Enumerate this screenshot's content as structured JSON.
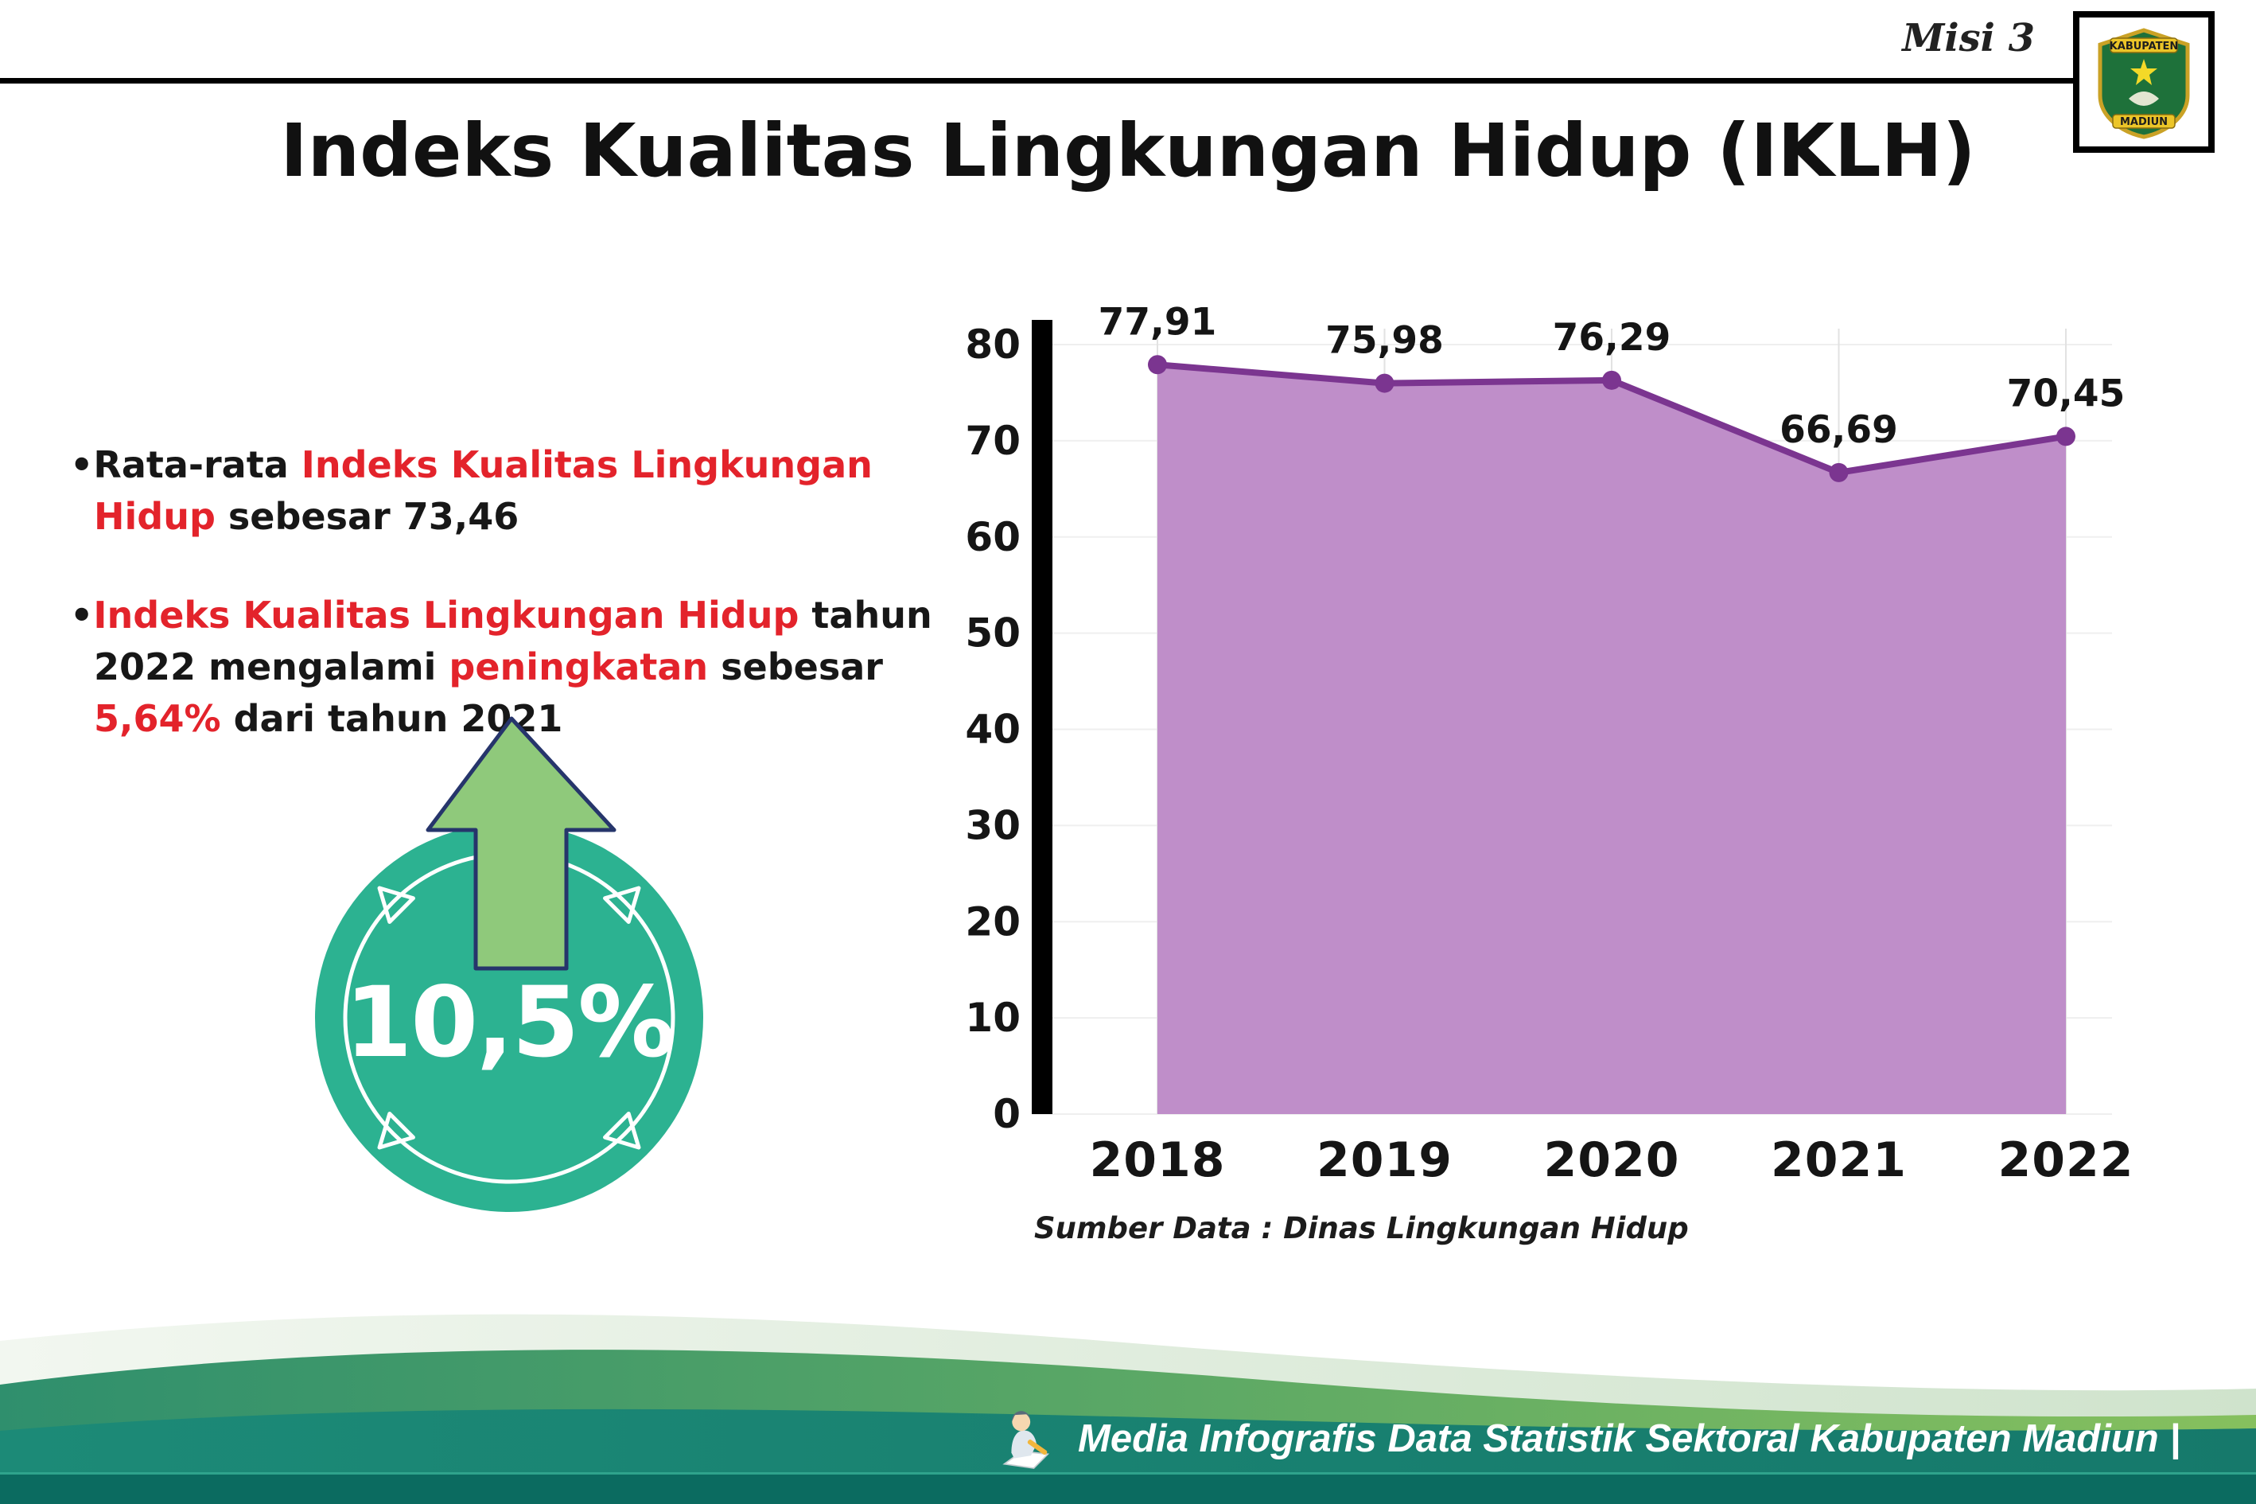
{
  "palette": {
    "red": "#e3232b",
    "teal": "#2cb291",
    "arrow_green": "#8fc97b",
    "footer_strip": "#0b6b60"
  },
  "bullet_char": "•",
  "header": {
    "misi": "Misi 3",
    "title": "Indeks Kualitas Lingkungan Hidup (IKLH)",
    "logo_top": "KABUPATEN",
    "logo_bottom": "MADIUN"
  },
  "bullets": [
    {
      "segments": [
        {
          "text": "Rata-rata ",
          "color": "black"
        },
        {
          "text": "Indeks Kualitas Lingkungan Hidup",
          "color": "red"
        },
        {
          "text": " sebesar 73,46",
          "color": "black"
        }
      ]
    },
    {
      "segments": [
        {
          "text": "Indeks Kualitas Lingkungan Hidup",
          "color": "red"
        },
        {
          "text": " tahun 2022 mengalami ",
          "color": "black"
        },
        {
          "text": "peningkatan",
          "color": "red"
        },
        {
          "text": " sebesar ",
          "color": "black"
        },
        {
          "text": "5,64%",
          "color": "red"
        },
        {
          "text": " dari tahun 2021",
          "color": "black"
        }
      ]
    }
  ],
  "badge": {
    "value": "10,5%"
  },
  "chart_data": {
    "type": "area",
    "title": "Indeks Kualitas Lingkungan Hidup (IKLH)",
    "categories": [
      "2018",
      "2019",
      "2020",
      "2021",
      "2022"
    ],
    "values": [
      77.91,
      75.98,
      76.29,
      66.69,
      70.45
    ],
    "value_labels": [
      "77,91",
      "75,98",
      "76,29",
      "66,69",
      "70,45"
    ],
    "ylim": [
      0,
      80
    ],
    "yticks": [
      0,
      10,
      20,
      30,
      40,
      50,
      60,
      70,
      80
    ],
    "xlabel": "",
    "ylabel": "",
    "grid": true,
    "legend": false,
    "colors": {
      "area": "#bf8ec9",
      "line": "#7b3590",
      "point": "#7b3590"
    },
    "source": "Sumber Data : Dinas Lingkungan Hidup"
  },
  "footer": {
    "text": "Media Infografis Data Statistik Sektoral Kabupaten Madiun |"
  }
}
